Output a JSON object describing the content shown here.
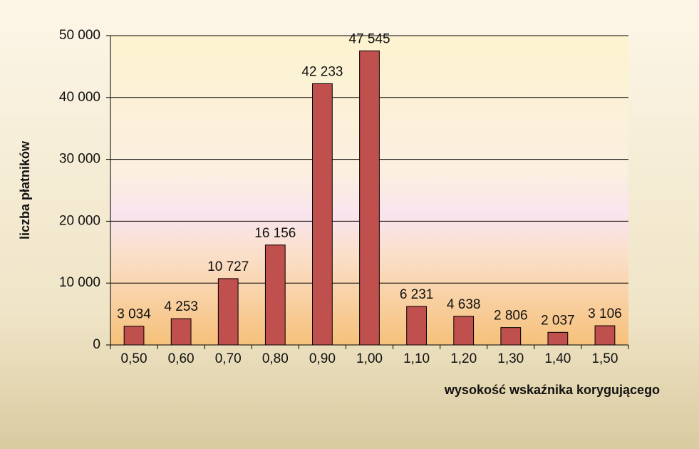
{
  "chart_data": {
    "type": "bar",
    "categories": [
      "0,50",
      "0,60",
      "0,70",
      "0,80",
      "0,90",
      "1,00",
      "1,10",
      "1,20",
      "1,30",
      "1,40",
      "1,50"
    ],
    "values": [
      3034,
      4253,
      10727,
      16156,
      42233,
      47545,
      6231,
      4638,
      2806,
      2037,
      3106
    ],
    "value_labels": [
      "3 034",
      "4 253",
      "10 727",
      "16 156",
      "42 233",
      "47 545",
      "6 231",
      "4 638",
      "2 806",
      "2 037",
      "3 106"
    ],
    "color": "#c0504d",
    "x_label": "wysokość wskaźnika korygującego",
    "y_label": "liczba płatników",
    "ylim": [
      0,
      50000
    ],
    "yticks": [
      0,
      {
        "value": 10000,
        "label": "10 000"
      },
      {
        "value": 20000,
        "label": "20 000"
      },
      {
        "value": 30000,
        "label": "30 000"
      },
      {
        "value": 40000,
        "label": "40 000"
      },
      {
        "value": 50000,
        "label": "50 000"
      }
    ],
    "grid": true
  }
}
